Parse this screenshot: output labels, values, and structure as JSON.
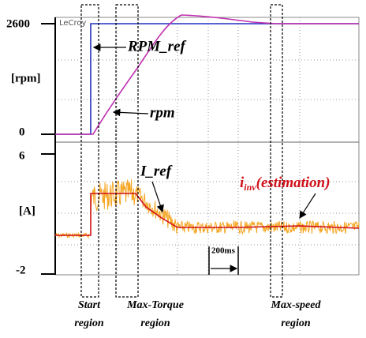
{
  "logo": "LeCroy",
  "top_panel": {
    "y_top": "2600",
    "unit": "[rpm]",
    "y_bottom": "0",
    "annotations": {
      "rpm_ref": "RPM_ref",
      "rpm": "rpm"
    }
  },
  "bottom_panel": {
    "y_top": "6",
    "unit": "[A]",
    "y_bottom": "-2",
    "time_scale": "200ms",
    "annotations": {
      "i_ref": "I_ref",
      "i_inv": {
        "symbol": "i",
        "subscript": "inv",
        "text": "(estimation)"
      }
    }
  },
  "regions": [
    {
      "line1": "Start",
      "line2": "region"
    },
    {
      "line1": "Max-Torque",
      "line2": "region"
    },
    {
      "line1": "Max-speed",
      "line2": "region"
    }
  ]
}
